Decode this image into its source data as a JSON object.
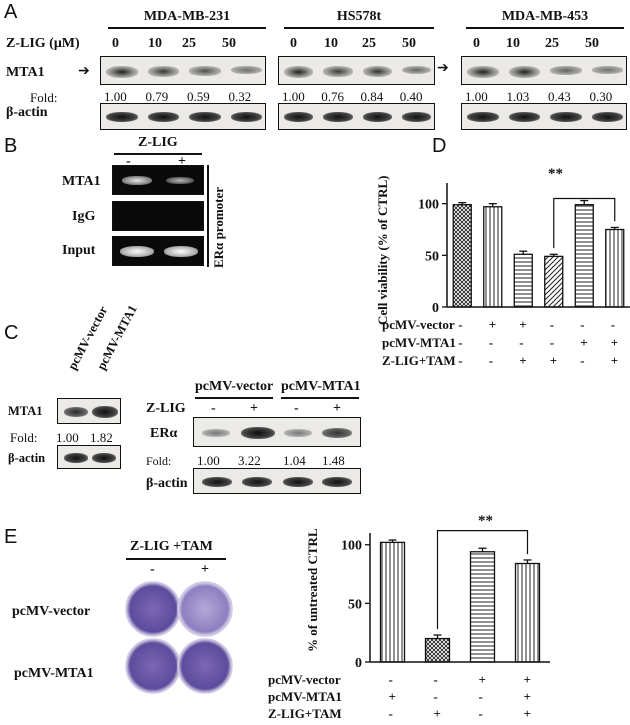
{
  "panels": {
    "A": "A",
    "B": "B",
    "C": "C",
    "D": "D",
    "E": "E"
  },
  "panelA": {
    "treatment_label": "Z-LIG (μM)",
    "fold_label": "Fold:",
    "row_labels": {
      "mta1": "MTA1",
      "actin": "β-actin"
    },
    "groups": [
      {
        "name": "MDA-MB-231",
        "doses": [
          "0",
          "10",
          "25",
          "50"
        ],
        "folds": [
          "1.00",
          "0.79",
          "0.59",
          "0.32"
        ],
        "mta1_intensity": [
          1.0,
          0.79,
          0.59,
          0.32
        ]
      },
      {
        "name": "HS578t",
        "doses": [
          "0",
          "10",
          "25",
          "50"
        ],
        "folds": [
          "1.00",
          "0.76",
          "0.84",
          "0.40"
        ],
        "mta1_intensity": [
          1.0,
          0.76,
          0.84,
          0.4
        ]
      },
      {
        "name": "MDA-MB-453",
        "doses": [
          "0",
          "10",
          "25",
          "50"
        ],
        "folds": [
          "1.00",
          "1.03",
          "0.43",
          "0.30"
        ],
        "mta1_intensity": [
          1.0,
          1.03,
          0.43,
          0.3
        ]
      }
    ]
  },
  "panelB": {
    "treatment_label": "Z-LIG",
    "conditions": [
      "-",
      "+"
    ],
    "rows": [
      "MTA1",
      "IgG",
      "Input"
    ],
    "side_label": "ERα promoter"
  },
  "panelC": {
    "left": {
      "lanes": [
        "pcMV-vector",
        "pcMV-MTA1"
      ],
      "row_labels": {
        "mta1": "MTA1",
        "actin": "β-actin"
      },
      "fold_label": "Fold:",
      "folds": [
        "1.00",
        "1.82"
      ]
    },
    "right": {
      "groups": [
        "pcMV-vector",
        "pcMV-MTA1"
      ],
      "treatment_label": "Z-LIG",
      "conditions": [
        "-",
        "+",
        "-",
        "+"
      ],
      "row_labels": {
        "era": "ERα",
        "actin": "β-actin"
      },
      "fold_label": "Fold:",
      "folds": [
        "1.00",
        "3.22",
        "1.04",
        "1.48"
      ]
    }
  },
  "panelD": {
    "row_labels": [
      "pcMV-vector",
      "pcMV-MTA1",
      "Z-LIG+TAM"
    ],
    "matrix": [
      [
        "-",
        "+",
        "+",
        "-",
        "-",
        "-"
      ],
      [
        "-",
        "-",
        "-",
        "-",
        "+",
        "+"
      ],
      [
        "-",
        "-",
        "+",
        "+",
        "-",
        "+"
      ]
    ],
    "significance": "**"
  },
  "panelE_plate": {
    "treatment_label": "Z-LIG +TAM",
    "conditions": [
      "-",
      "+"
    ],
    "rows": [
      "pcMV-vector",
      "pcMV-MTA1"
    ]
  },
  "panelE_chart": {
    "row_labels": [
      "pcMV-vector",
      "pcMV-MTA1",
      "Z-LIG+TAM"
    ],
    "matrix": [
      [
        "-",
        "-",
        "+",
        "+"
      ],
      [
        "+",
        "-",
        "-",
        "+"
      ],
      [
        "-",
        "+",
        "-",
        "+"
      ]
    ],
    "significance": "**"
  },
  "chart_data": [
    {
      "type": "bar",
      "ylabel": "Cell viability (% of CTRL)",
      "ylim": [
        0,
        120
      ],
      "yticks": [
        "0",
        "50",
        "100"
      ],
      "values": [
        99,
        97,
        51,
        49,
        99,
        75
      ],
      "errors": [
        2,
        3,
        3,
        2,
        4,
        2
      ],
      "patterns": [
        "crosshatch",
        "vertical",
        "horizontal",
        "diagonal",
        "horizontal",
        "vertical"
      ]
    },
    {
      "type": "bar",
      "ylabel": "% of untreated CTRL",
      "ylim": [
        0,
        110
      ],
      "yticks": [
        "0",
        "50",
        "100"
      ],
      "values": [
        102,
        20,
        94,
        84
      ],
      "errors": [
        2,
        3,
        3,
        3
      ],
      "patterns": [
        "vertical",
        "crosshatch",
        "horizontal",
        "vertical"
      ]
    }
  ]
}
